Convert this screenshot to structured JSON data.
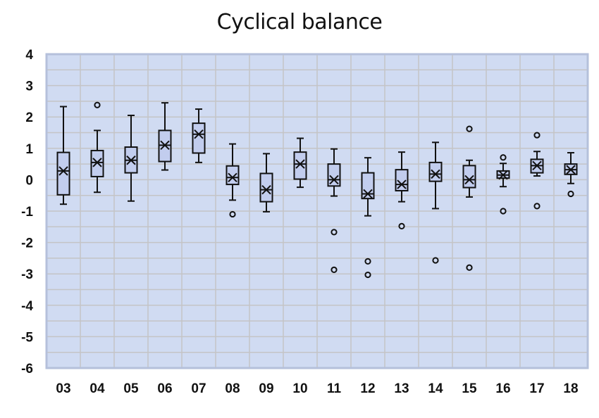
{
  "chart_data": {
    "type": "box",
    "title": "Cyclical balance",
    "xlabel": "",
    "ylabel": "",
    "ylim": [
      -6,
      4
    ],
    "yticks": [
      4,
      3,
      2,
      1,
      0,
      -1,
      -2,
      -3,
      -4,
      -5,
      -6
    ],
    "grid": true,
    "legend": "none",
    "colors": {
      "plot_bg": "#d0dbf2",
      "grid": "#c4c4c6",
      "border": "#b5c0db",
      "box_fill": "#c2cdee",
      "stroke": "#111111"
    },
    "categories": [
      "03",
      "04",
      "05",
      "06",
      "07",
      "08",
      "09",
      "10",
      "11",
      "12",
      "13",
      "14",
      "15",
      "16",
      "17",
      "18"
    ],
    "boxes": [
      {
        "label": "03",
        "min": -0.78,
        "q1": -0.48,
        "median": 0.28,
        "q3": 0.87,
        "max": 2.33,
        "mean": 0.28,
        "outliers": []
      },
      {
        "label": "04",
        "min": -0.4,
        "q1": 0.1,
        "median": 0.55,
        "q3": 0.93,
        "max": 1.57,
        "mean": 0.55,
        "outliers": [
          2.38
        ]
      },
      {
        "label": "05",
        "min": -0.68,
        "q1": 0.22,
        "median": 0.62,
        "q3": 1.04,
        "max": 2.05,
        "mean": 0.62,
        "outliers": []
      },
      {
        "label": "06",
        "min": 0.31,
        "q1": 0.58,
        "median": 1.1,
        "q3": 1.57,
        "max": 2.45,
        "mean": 1.1,
        "outliers": []
      },
      {
        "label": "07",
        "min": 0.55,
        "q1": 0.85,
        "median": 1.45,
        "q3": 1.8,
        "max": 2.25,
        "mean": 1.45,
        "outliers": []
      },
      {
        "label": "08",
        "min": -0.65,
        "q1": -0.15,
        "median": 0.07,
        "q3": 0.44,
        "max": 1.14,
        "mean": 0.07,
        "outliers": [
          -1.1
        ]
      },
      {
        "label": "09",
        "min": -1.02,
        "q1": -0.7,
        "median": -0.32,
        "q3": 0.2,
        "max": 0.83,
        "mean": -0.32,
        "outliers": []
      },
      {
        "label": "10",
        "min": -0.24,
        "q1": 0.02,
        "median": 0.5,
        "q3": 0.88,
        "max": 1.32,
        "mean": 0.5,
        "outliers": []
      },
      {
        "label": "11",
        "min": -0.52,
        "q1": -0.2,
        "median": 0.0,
        "q3": 0.5,
        "max": 0.98,
        "mean": 0.0,
        "outliers": [
          -1.67,
          -2.87
        ]
      },
      {
        "label": "12",
        "min": -1.15,
        "q1": -0.6,
        "median": -0.45,
        "q3": 0.22,
        "max": 0.7,
        "mean": -0.45,
        "outliers": [
          -2.6,
          -3.03
        ]
      },
      {
        "label": "13",
        "min": -0.7,
        "q1": -0.35,
        "median": -0.15,
        "q3": 0.32,
        "max": 0.88,
        "mean": -0.15,
        "outliers": [
          -1.48
        ]
      },
      {
        "label": "14",
        "min": -0.92,
        "q1": -0.05,
        "median": 0.18,
        "q3": 0.55,
        "max": 1.19,
        "mean": 0.18,
        "outliers": [
          -2.57
        ]
      },
      {
        "label": "15",
        "min": -0.55,
        "q1": -0.25,
        "median": 0.0,
        "q3": 0.45,
        "max": 0.62,
        "mean": 0.0,
        "outliers": [
          1.62,
          -2.8
        ]
      },
      {
        "label": "16",
        "min": -0.22,
        "q1": 0.05,
        "median": 0.15,
        "q3": 0.28,
        "max": 0.52,
        "mean": 0.15,
        "outliers": [
          0.71,
          -1.0
        ]
      },
      {
        "label": "17",
        "min": 0.12,
        "q1": 0.22,
        "median": 0.45,
        "q3": 0.65,
        "max": 0.9,
        "mean": 0.45,
        "outliers": [
          1.42,
          -0.84
        ]
      },
      {
        "label": "18",
        "min": -0.12,
        "q1": 0.17,
        "median": 0.32,
        "q3": 0.5,
        "max": 0.86,
        "mean": 0.32,
        "outliers": [
          -0.45
        ]
      }
    ]
  }
}
